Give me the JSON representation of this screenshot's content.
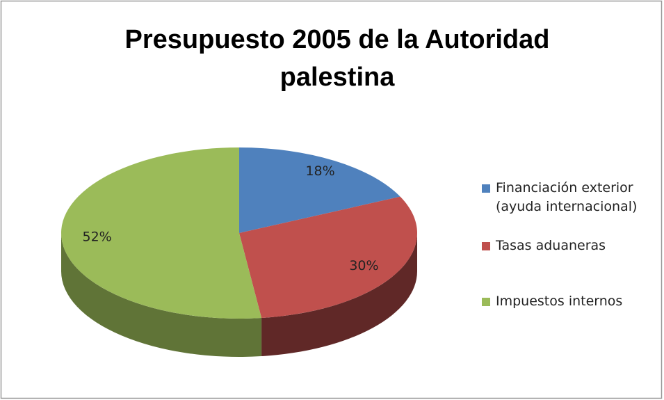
{
  "chart_data": {
    "type": "pie3d",
    "title": "Presupuesto 2005 de la Autoridad palestina",
    "categories": [
      "Financiación exterior (ayuda internacional)",
      "Tasas aduaneras",
      "Impuestos internos"
    ],
    "values": [
      18,
      30,
      52
    ],
    "value_labels": [
      "18%",
      "30%",
      "52%"
    ],
    "colors": [
      "#4f81bd",
      "#c0504d",
      "#9bbb59"
    ],
    "legend": "right"
  }
}
